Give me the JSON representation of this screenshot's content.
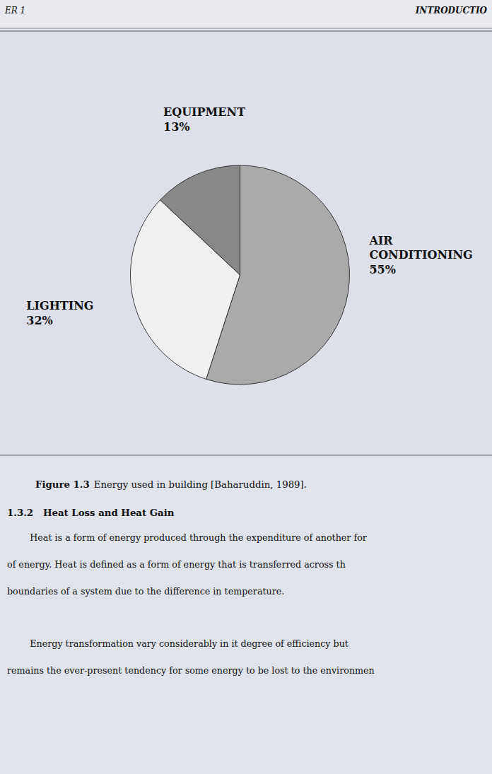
{
  "chart_data": {
    "type": "pie",
    "categories": [
      "AIR\nCONDITIONING",
      "LIGHTING",
      "EQUIPMENT"
    ],
    "values": [
      55,
      32,
      13
    ],
    "value_labels": [
      "55%",
      "32%",
      "13%"
    ],
    "data_labels": true,
    "colors": [
      "#aaaaaa",
      "#f0f0f0",
      "#888888"
    ]
  },
  "page": {
    "header_left": "ER 1",
    "header_right": "INTRODUCTIO",
    "caption_bold": "Figure 1.3",
    "caption": "Energy used in building [Baharuddin, 1989].",
    "section_heading": "1.3.2   Heat Loss and Heat Gain",
    "paragraphs": [
      [
        "        Heat is a form of energy produced through the expenditure of another for",
        "of energy. Heat is defined as a form of energy that is transferred across th",
        "boundaries of a system due to the difference in temperature."
      ],
      [
        "        Energy transformation vary considerably in it degree of efficiency but",
        "remains the ever-present tendency for some energy to be lost to the environmen"
      ]
    ]
  }
}
